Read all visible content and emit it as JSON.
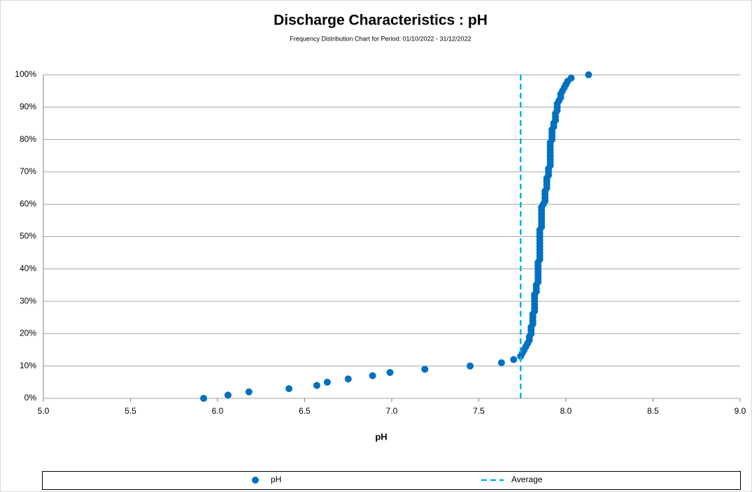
{
  "chart_data": {
    "type": "scatter",
    "title": "Discharge Characteristics : pH",
    "subtitle": "Frequency Distribution Chart for Period: 01/10/2022 - 31/12/2022",
    "x_label": "pH",
    "xlim": [
      5,
      9
    ],
    "xticks": [
      {
        "value": 5,
        "label": "5.0"
      },
      {
        "value": 5.5,
        "label": "5.5"
      },
      {
        "value": 6,
        "label": "6.0"
      },
      {
        "value": 6.5,
        "label": "6.5"
      },
      {
        "value": 7,
        "label": "7.0"
      },
      {
        "value": 7.5,
        "label": "7.5"
      },
      {
        "value": 8,
        "label": "8.0"
      },
      {
        "value": 8.5,
        "label": "8.5"
      },
      {
        "value": 9,
        "label": "9.0"
      }
    ],
    "ylim": [
      0,
      100
    ],
    "yticks": [
      {
        "value": 0,
        "label": "0%"
      },
      {
        "value": 10,
        "label": "10%"
      },
      {
        "value": 20,
        "label": "20%"
      },
      {
        "value": 30,
        "label": "30%"
      },
      {
        "value": 40,
        "label": "40%"
      },
      {
        "value": 50,
        "label": "50%"
      },
      {
        "value": 60,
        "label": "60%"
      },
      {
        "value": 70,
        "label": "70%"
      },
      {
        "value": 80,
        "label": "80%"
      },
      {
        "value": 90,
        "label": "90%"
      },
      {
        "value": 100,
        "label": "100%"
      }
    ],
    "grid": true,
    "legend": "bottom",
    "series": [
      {
        "name": "pH",
        "color": "#0070c0",
        "x": [
          5.92,
          6.06,
          6.18,
          6.41,
          6.57,
          6.63,
          6.75,
          6.89,
          6.99,
          7.19,
          7.45,
          7.63,
          7.7,
          7.74,
          7.75,
          7.76,
          7.77,
          7.78,
          7.79,
          7.79,
          7.8,
          7.8,
          7.8,
          7.81,
          7.81,
          7.81,
          7.81,
          7.82,
          7.82,
          7.82,
          7.82,
          7.82,
          7.82,
          7.83,
          7.83,
          7.83,
          7.84,
          7.84,
          7.84,
          7.84,
          7.84,
          7.84,
          7.84,
          7.85,
          7.85,
          7.85,
          7.85,
          7.85,
          7.85,
          7.85,
          7.85,
          7.85,
          7.85,
          7.86,
          7.86,
          7.86,
          7.86,
          7.86,
          7.86,
          7.86,
          7.87,
          7.88,
          7.88,
          7.88,
          7.88,
          7.89,
          7.89,
          7.89,
          7.89,
          7.9,
          7.9,
          7.9,
          7.91,
          7.91,
          7.91,
          7.91,
          7.91,
          7.91,
          7.91,
          7.91,
          7.92,
          7.92,
          7.92,
          7.92,
          7.93,
          7.93,
          7.94,
          7.94,
          7.94,
          7.95,
          7.95,
          7.95,
          7.96,
          7.97,
          7.97,
          7.98,
          7.99,
          8.0,
          8.01,
          8.03,
          8.13
        ],
        "values": [
          0,
          1,
          2,
          3,
          4,
          5,
          6,
          7,
          8,
          9,
          10,
          11,
          12,
          13,
          14,
          15,
          16,
          17,
          18,
          19,
          20,
          21,
          22,
          23,
          24,
          25,
          26,
          27,
          28,
          29,
          30,
          31,
          32,
          33,
          34,
          35,
          36,
          37,
          38,
          39,
          40,
          41,
          42,
          43,
          44,
          45,
          46,
          47,
          48,
          49,
          50,
          51,
          52,
          53,
          54,
          55,
          56,
          57,
          58,
          59,
          60,
          61,
          62,
          63,
          64,
          65,
          66,
          67,
          68,
          69,
          70,
          71,
          72,
          73,
          74,
          75,
          76,
          77,
          78,
          79,
          80,
          81,
          82,
          83,
          84,
          85,
          86,
          87,
          88,
          89,
          90,
          91,
          92,
          93,
          94,
          95,
          96,
          97,
          98,
          99,
          100
        ]
      }
    ],
    "average": {
      "name": "Average",
      "value": 7.74,
      "color": "#00b0f0"
    }
  }
}
